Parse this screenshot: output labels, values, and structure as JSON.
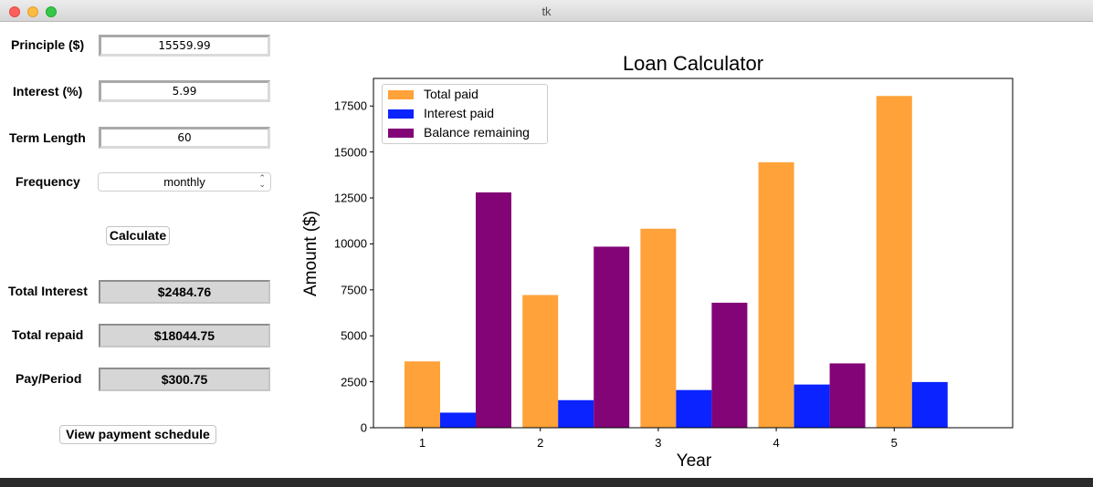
{
  "window": {
    "title": "tk"
  },
  "form": {
    "principal_label": "Principle ($)",
    "principal_value": "15559.99",
    "interest_label": "Interest (%)",
    "interest_value": "5.99",
    "term_label": "Term Length",
    "term_value": "60",
    "frequency_label": "Frequency",
    "frequency_value": "monthly",
    "calculate_label": "Calculate"
  },
  "results": {
    "total_interest_label": "Total Interest",
    "total_interest_value": "$2484.76",
    "total_repaid_label": "Total repaid",
    "total_repaid_value": "$18044.75",
    "pay_period_label": "Pay/Period",
    "pay_period_value": "$300.75",
    "schedule_button_label": "View payment schedule"
  },
  "chart_data": {
    "type": "bar",
    "title": "Loan Calculator",
    "xlabel": "Year",
    "ylabel": "Amount ($)",
    "categories": [
      "1",
      "2",
      "3",
      "4",
      "5"
    ],
    "ylim": [
      0,
      19000
    ],
    "yticks": [
      0,
      2500,
      5000,
      7500,
      10000,
      12500,
      15000,
      17500
    ],
    "legend_position": "top-left",
    "series": [
      {
        "name": "Total paid",
        "color": "#ffa23a",
        "values": [
          3609,
          7218,
          10827,
          14436,
          18045
        ]
      },
      {
        "name": "Interest paid",
        "color": "#0a23ff",
        "values": [
          820,
          1500,
          2050,
          2350,
          2485
        ]
      },
      {
        "name": "Balance remaining",
        "color": "#830477",
        "values": [
          12800,
          9850,
          6800,
          3500,
          null
        ]
      }
    ]
  }
}
